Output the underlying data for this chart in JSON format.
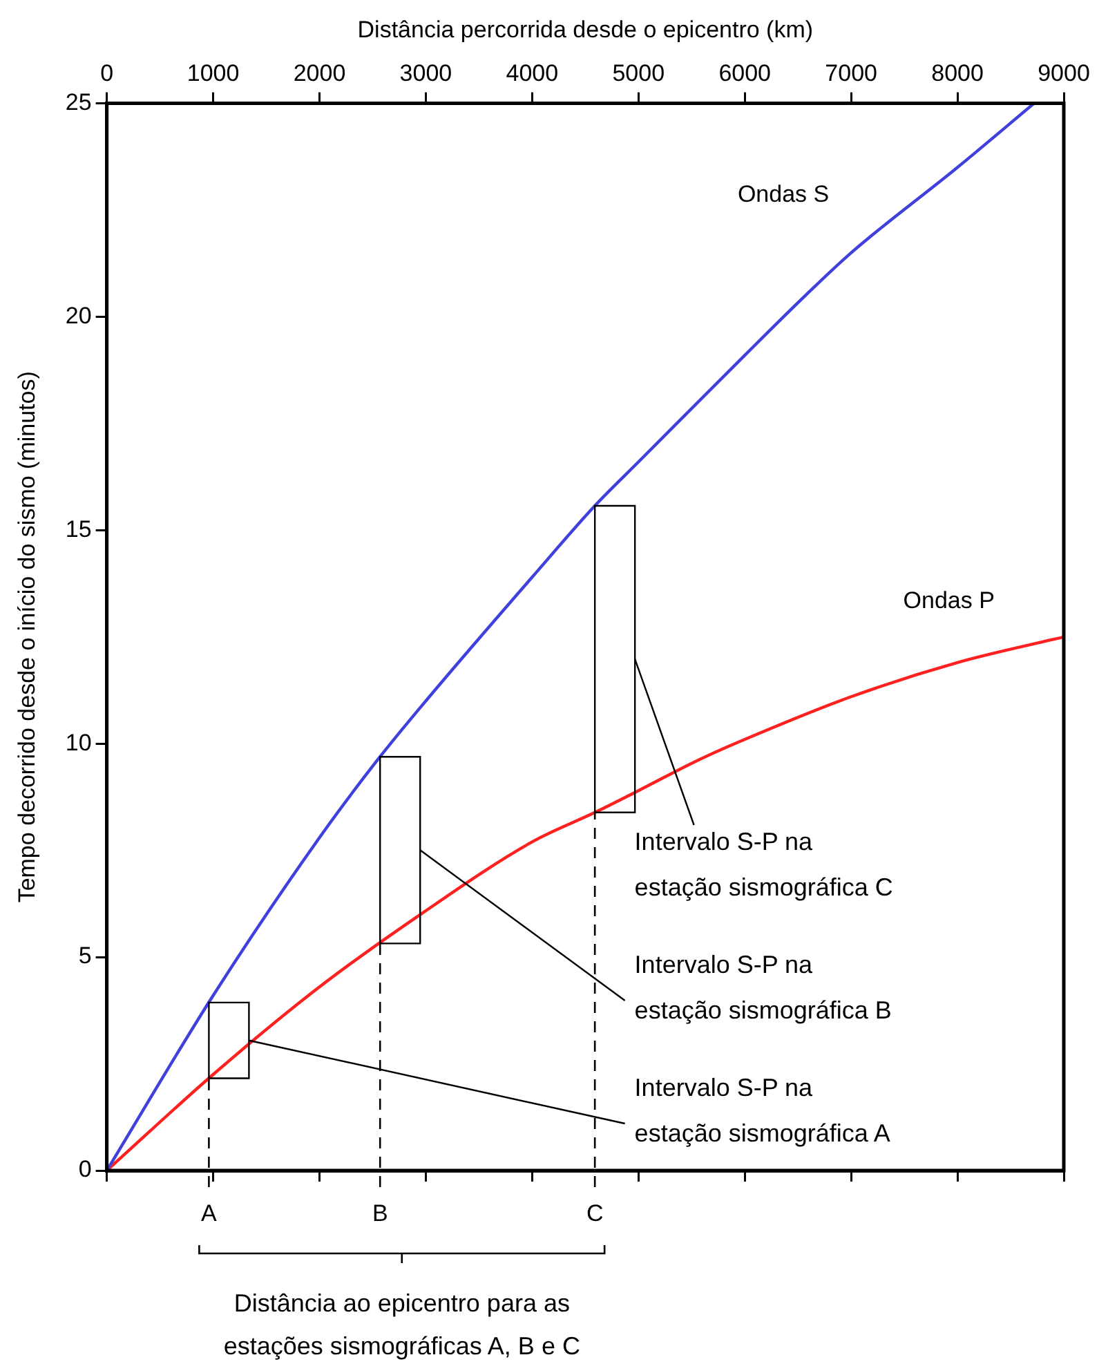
{
  "chart_data": {
    "type": "line",
    "xlabel": "Distância percorrida desde o epicentro (km)",
    "ylabel": "Tempo decorrido desde o início do sismo (minutos)",
    "xlim": [
      0,
      9000
    ],
    "xticks": [
      0,
      1000,
      2000,
      3000,
      4000,
      5000,
      6000,
      7000,
      8000,
      9000
    ],
    "ylim": [
      0,
      25
    ],
    "yticks": [
      0,
      5,
      10,
      15,
      20,
      25
    ],
    "grid": false,
    "legend": false,
    "marker": "none",
    "line_style": "solid",
    "series": [
      {
        "name": "Ondas S",
        "color": "#4040dd",
        "x": [
          0,
          1000,
          2000,
          2540,
          3000,
          4000,
          4600,
          5000,
          6000,
          6570,
          7000,
          8000,
          8720
        ],
        "values": [
          0,
          4.1,
          7.8,
          9.6,
          11.0,
          13.9,
          15.6,
          16.6,
          19.1,
          20.5,
          21.5,
          23.5,
          25
        ]
      },
      {
        "name": "Ondas P",
        "color": "#ff2020",
        "x": [
          0,
          1000,
          2000,
          2950,
          4000,
          4600,
          5000,
          5550,
          6000,
          7000,
          8000,
          9000
        ],
        "values": [
          0,
          2.25,
          4.3,
          6.0,
          7.7,
          8.4,
          8.9,
          9.6,
          10.1,
          11.1,
          11.9,
          12.5
        ]
      }
    ],
    "ref_lines": [
      {
        "axis": "x",
        "value": 960,
        "label": "A",
        "line_style": "dashed"
      },
      {
        "axis": "x",
        "value": 2570,
        "label": "B",
        "line_style": "dashed"
      },
      {
        "axis": "x",
        "value": 4590,
        "label": "C",
        "line_style": "dashed"
      }
    ],
    "annotations": [
      "Intervalo S-P na estação sismográfica A",
      "Intervalo S-P na estação sismográfica B",
      "Intervalo S-P na estação sismográfica C",
      "Distância ao epicentro para as estações sismográficas A, B e C"
    ]
  }
}
